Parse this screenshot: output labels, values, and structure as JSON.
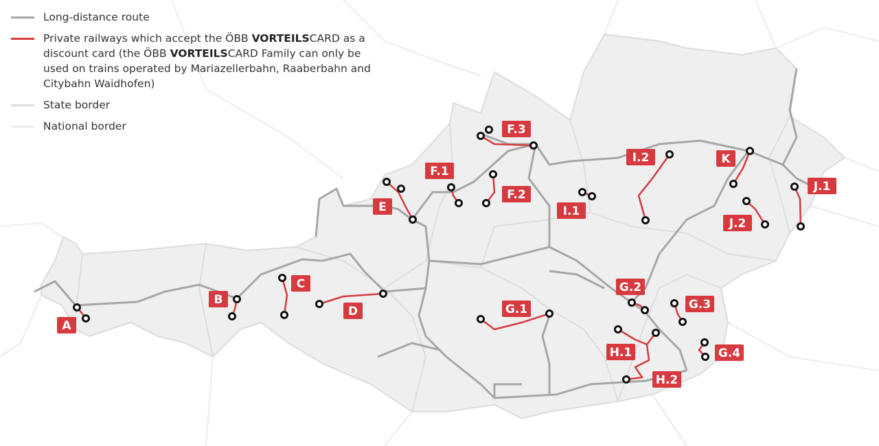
{
  "legend": {
    "long_distance": "Long-distance route",
    "private_pre": "Private railways which accept the ÖBB ",
    "brand_bold": "VORTEILS",
    "brand_rest": "CARD",
    "private_mid": " as a discount card (the ÖBB ",
    "private_post": " Family can only be used on trains operated by Mariazellerbahn, Raaberbahn and Citybahn Waidhofen)",
    "state_border": "State border",
    "national_border": "National border"
  },
  "colors": {
    "long_distance": "#a6a6a6",
    "private_railway": "#d63a3f",
    "state_border": "#dddddd",
    "national_border": "#ececec",
    "country_fill": "#efefef",
    "label_bg": "#d63a3f"
  },
  "railways": [
    "A",
    "B",
    "C",
    "D",
    "E",
    "F.1",
    "F.2",
    "F.3",
    "G.1",
    "G.2",
    "G.3",
    "G.4",
    "H.1",
    "H.2",
    "I.1",
    "I.2",
    "J.1",
    "J.2",
    "K"
  ]
}
